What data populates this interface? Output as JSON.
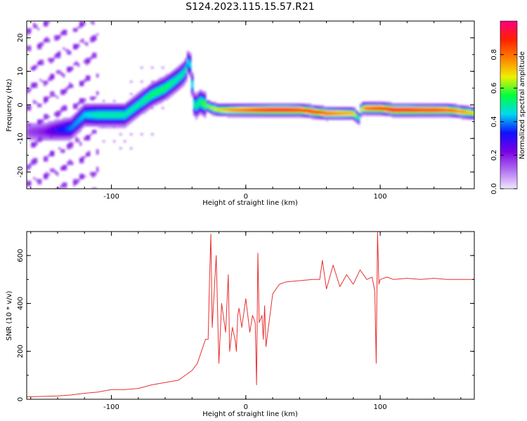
{
  "figure": {
    "title": "S124.2023.115.15.57.R21"
  },
  "colors": {
    "snr_line": "#e83030",
    "axis": "#000000",
    "colormap": [
      "#f2e6ff",
      "#b070f0",
      "#7a00e6",
      "#1010ff",
      "#00d8f0",
      "#00ff40",
      "#f0f000",
      "#ff8000",
      "#ff2000",
      "#ff0080"
    ]
  },
  "chart_data": [
    {
      "type": "heatmap",
      "title": "",
      "xlabel": "Height of straight line (km)",
      "ylabel": "Frequency (Hz)",
      "xlim": [
        -163,
        170
      ],
      "ylim": [
        -25,
        25
      ],
      "xticks": [
        -100,
        0,
        100
      ],
      "yticks": [
        -20,
        -10,
        0,
        10,
        20
      ],
      "colorbar": {
        "label": "Normalized spectral amplitude",
        "range": [
          0.0,
          1.0
        ],
        "ticks": [
          0.0,
          0.2,
          0.4,
          0.6,
          0.8
        ]
      },
      "ridge": {
        "x": [
          -163,
          -150,
          -140,
          -130,
          -120,
          -110,
          -100,
          -90,
          -80,
          -70,
          -60,
          -50,
          -45,
          -42,
          -38,
          -34,
          -30,
          -25,
          -20,
          -10,
          0,
          10,
          20,
          30,
          40,
          50,
          60,
          70,
          80,
          84,
          86,
          90,
          100,
          110,
          120,
          130,
          140,
          150,
          160,
          170
        ],
        "y": [
          -8,
          -8,
          -7.5,
          -7,
          -3,
          -3,
          -3,
          -3,
          0,
          3,
          5,
          8,
          10,
          14,
          -1,
          1,
          0,
          -1,
          -1.5,
          -1.5,
          -1.5,
          -1.5,
          -1.5,
          -1.5,
          -1.5,
          -2,
          -2.5,
          -2.5,
          -2.5,
          -4,
          -1,
          -1,
          -1,
          -1.5,
          -1.5,
          -1.5,
          -1.5,
          -1.5,
          -2,
          -2.5
        ]
      },
      "intensity": [
        0.15,
        0.2,
        0.3,
        0.4,
        0.45,
        0.5,
        0.5,
        0.5,
        0.5,
        0.55,
        0.55,
        0.5,
        0.5,
        0.45,
        0.5,
        0.55,
        0.6,
        0.65,
        0.7,
        0.8,
        0.85,
        0.9,
        0.95,
        0.95,
        0.9,
        0.9,
        0.85,
        0.8,
        0.75,
        0.5,
        0.7,
        0.85,
        0.9,
        0.95,
        0.95,
        0.9,
        0.9,
        0.85,
        0.8,
        0.7
      ]
    },
    {
      "type": "line",
      "title": "",
      "xlabel": "Height of straight line (km)",
      "ylabel": "SNR (10 * v/v)",
      "xlim": [
        -163,
        170
      ],
      "ylim": [
        0,
        700
      ],
      "xticks": [
        -100,
        0,
        100
      ],
      "yticks": [
        0,
        200,
        400,
        600
      ],
      "x": [
        -163,
        -150,
        -140,
        -130,
        -120,
        -110,
        -100,
        -90,
        -80,
        -70,
        -60,
        -50,
        -45,
        -40,
        -36,
        -33,
        -30,
        -28,
        -27,
        -26,
        -25,
        -22,
        -20,
        -18,
        -15,
        -13,
        -12,
        -10,
        -8,
        -7,
        -6,
        -5,
        -3,
        0,
        3,
        5,
        7,
        8,
        9,
        10,
        12,
        13,
        14,
        15,
        20,
        25,
        30,
        40,
        50,
        55,
        57,
        60,
        65,
        70,
        75,
        80,
        85,
        90,
        94,
        96,
        97,
        98,
        99,
        100,
        105,
        110,
        120,
        130,
        140,
        150,
        160,
        170
      ],
      "y": [
        10,
        12,
        14,
        18,
        25,
        30,
        40,
        40,
        45,
        60,
        70,
        80,
        100,
        120,
        150,
        200,
        250,
        250,
        500,
        690,
        300,
        600,
        150,
        400,
        280,
        520,
        200,
        300,
        250,
        200,
        350,
        380,
        300,
        420,
        280,
        350,
        320,
        60,
        610,
        320,
        350,
        250,
        390,
        220,
        440,
        480,
        490,
        495,
        500,
        500,
        580,
        460,
        560,
        470,
        520,
        480,
        540,
        500,
        510,
        450,
        150,
        700,
        480,
        500,
        510,
        500,
        505,
        500,
        505,
        500,
        500,
        500
      ]
    }
  ]
}
